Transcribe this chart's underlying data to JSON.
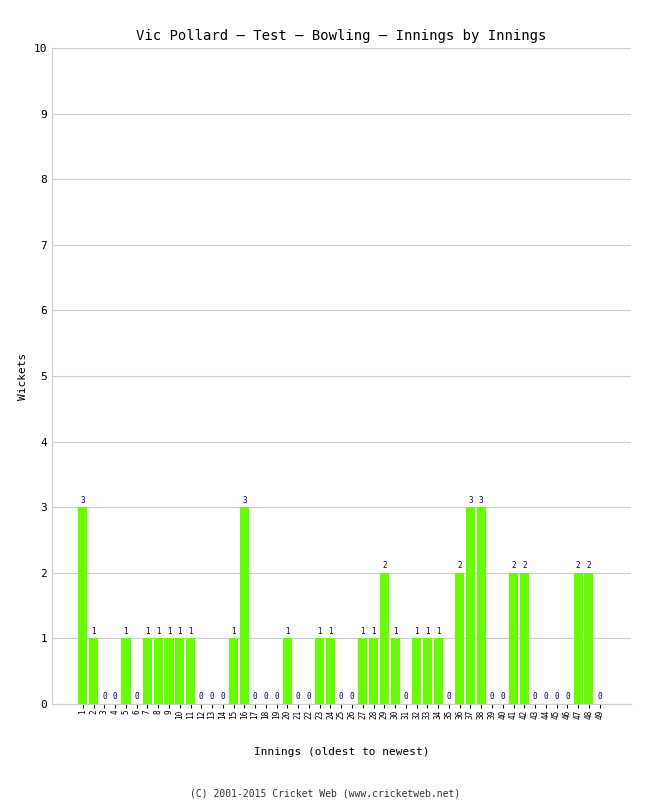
{
  "title": "Vic Pollard – Test – Bowling – Innings by Innings",
  "xlabel": "Innings (oldest to newest)",
  "ylabel": "Wickets",
  "footer": "(C) 2001-2015 Cricket Web (www.cricketweb.net)",
  "bar_color": "#66ff00",
  "label_color": "#000080",
  "ylim": [
    0,
    10
  ],
  "yticks": [
    0,
    1,
    2,
    3,
    4,
    5,
    6,
    7,
    8,
    9,
    10
  ],
  "background_color": "#ffffff",
  "grid_color": "#cccccc",
  "innings": [
    1,
    2,
    3,
    4,
    5,
    6,
    7,
    8,
    9,
    10,
    11,
    12,
    13,
    14,
    15,
    16,
    17,
    18,
    19,
    20,
    21,
    22,
    23,
    24,
    25,
    26,
    27,
    28,
    29,
    30,
    31,
    32,
    33,
    34,
    35,
    36,
    37,
    38,
    39,
    40,
    41,
    42,
    43,
    44,
    45,
    46,
    47,
    48,
    49
  ],
  "wickets": [
    3,
    1,
    0,
    0,
    1,
    0,
    1,
    1,
    1,
    1,
    1,
    0,
    0,
    0,
    1,
    3,
    0,
    0,
    0,
    1,
    0,
    0,
    1,
    1,
    0,
    0,
    1,
    1,
    2,
    1,
    0,
    1,
    1,
    1,
    0,
    2,
    3,
    3,
    0,
    0,
    2,
    2,
    0,
    0,
    0,
    0,
    2,
    2,
    0
  ]
}
